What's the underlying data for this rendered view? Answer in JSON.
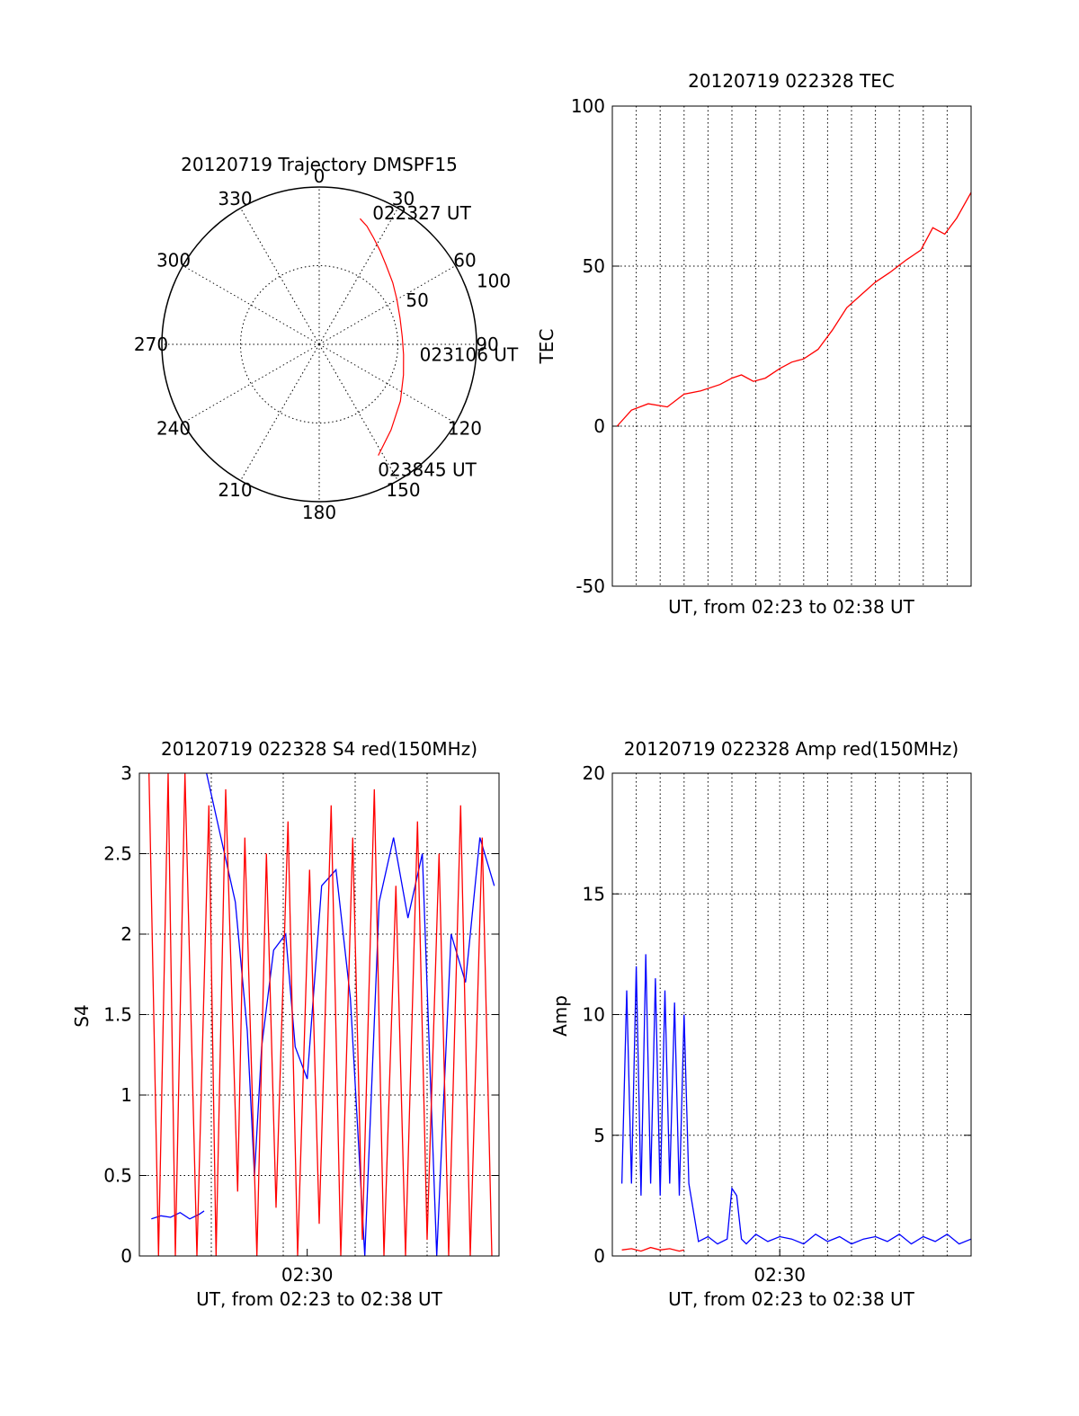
{
  "colors": {
    "red": "#ff0000",
    "blue": "#0000ff",
    "axis": "#000000"
  },
  "chart_data": [
    {
      "id": "polar",
      "type": "polar-trajectory",
      "title": "20120719 Trajectory DMSPF15",
      "azimuth_labels": [
        "0",
        "30",
        "60",
        "90",
        "120",
        "150",
        "180",
        "210",
        "240",
        "270",
        "300",
        "330"
      ],
      "radial_ticks": [
        50,
        100
      ],
      "radial_labels": [
        "50",
        "100"
      ],
      "trajectory": {
        "az": [
          18,
          22,
          27,
          33,
          40,
          50,
          60,
          72,
          85,
          97,
          110,
          125,
          140,
          152
        ],
        "zenith": [
          84,
          81,
          76,
          71,
          66,
          61,
          57,
          54,
          53,
          54,
          57,
          63,
          71,
          80
        ]
      },
      "annotations": [
        {
          "text": "022327 UT",
          "az": 22,
          "zenith": 90
        },
        {
          "text": "023106 UT",
          "az": 96,
          "zenith": 64
        },
        {
          "text": "023845 UT",
          "az": 155,
          "zenith": 88
        }
      ]
    },
    {
      "id": "tec",
      "type": "line",
      "title": "20120719 022328 TEC",
      "xlabel": "UT, from 02:23 to 02:38 UT",
      "ylabel": "TEC",
      "xlim": [
        0,
        15
      ],
      "ylim": [
        -50,
        100
      ],
      "yticks": [
        "100",
        "50",
        "0",
        "-50"
      ],
      "xticks": [],
      "grid": true,
      "series": [
        {
          "color": "red",
          "x": [
            0.2,
            0.8,
            1.5,
            2.3,
            3.0,
            3.7,
            4.5,
            5.0,
            5.4,
            5.9,
            6.4,
            7.0,
            7.5,
            8.0,
            8.6,
            9.2,
            9.8,
            10.4,
            11.0,
            11.6,
            12.3,
            12.9,
            13.4,
            13.9,
            14.4,
            15.0
          ],
          "y": [
            0,
            5,
            7,
            6,
            10,
            11,
            13,
            15,
            16,
            14,
            15,
            18,
            20,
            21,
            24,
            30,
            37,
            41,
            45,
            48,
            52,
            55,
            62,
            60,
            65,
            73
          ]
        }
      ]
    },
    {
      "id": "s4",
      "type": "line",
      "title": "20120719 022328 S4 red(150MHz)",
      "xlabel": "UT, from 02:23 to 02:38 UT",
      "ylabel": "S4",
      "xlim": [
        0,
        15
      ],
      "ylim": [
        0,
        3
      ],
      "yticks": [
        "3",
        "2.5",
        "2",
        "1.5",
        "1",
        "0.5",
        "0"
      ],
      "xticks": [
        {
          "value": 7,
          "label": "02:30"
        }
      ],
      "grid": true,
      "series": [
        {
          "color": "blue",
          "x": [
            0.5,
            0.9,
            1.3,
            1.7,
            2.1,
            2.5,
            2.7
          ],
          "y": [
            0.23,
            0.25,
            0.24,
            0.27,
            0.23,
            0.26,
            0.28
          ]
        },
        {
          "color": "blue",
          "x": [
            2.8,
            3.4,
            4.0,
            4.5,
            4.8,
            5.1,
            5.6,
            6.1,
            6.5,
            7.0,
            7.6,
            8.2,
            8.8,
            9.4,
            10.0,
            10.6,
            11.2,
            11.8,
            12.4,
            13.0,
            13.6,
            14.2,
            14.8
          ],
          "y": [
            3.0,
            2.6,
            2.2,
            1.4,
            0.5,
            1.3,
            1.9,
            2.0,
            1.3,
            1.1,
            2.3,
            2.4,
            1.6,
            0.0,
            2.2,
            2.6,
            2.1,
            2.5,
            0.0,
            2.0,
            1.7,
            2.6,
            2.3
          ]
        },
        {
          "color": "red",
          "x": [
            0.4,
            0.8,
            1.2,
            1.5,
            1.9,
            2.4,
            2.9,
            3.2,
            3.6,
            4.1,
            4.4,
            4.9,
            5.3,
            5.7,
            6.2,
            6.6,
            7.1,
            7.5,
            8.0,
            8.4,
            8.9,
            9.3,
            9.8,
            10.2,
            10.7,
            11.1,
            11.6,
            12.0,
            12.5,
            12.9,
            13.4,
            13.8,
            14.3,
            14.7
          ],
          "y": [
            3.0,
            0.0,
            3.0,
            0.0,
            3.0,
            0.0,
            2.8,
            0.0,
            2.9,
            0.4,
            2.6,
            0.0,
            2.5,
            0.3,
            2.7,
            0.0,
            2.4,
            0.2,
            2.8,
            0.0,
            2.6,
            0.1,
            2.9,
            0.0,
            2.3,
            0.0,
            2.7,
            0.1,
            2.5,
            0.0,
            2.8,
            0.0,
            2.6,
            0.0
          ]
        }
      ]
    },
    {
      "id": "amp",
      "type": "line",
      "title": "20120719 022328 Amp red(150MHz)",
      "xlabel": "UT, from 02:23 to 02:38 UT",
      "ylabel": "Amp",
      "xlim": [
        0,
        15
      ],
      "ylim": [
        0,
        20
      ],
      "yticks": [
        "20",
        "15",
        "10",
        "5",
        "0"
      ],
      "xticks": [
        {
          "value": 7,
          "label": "02:30"
        }
      ],
      "grid": true,
      "series": [
        {
          "color": "blue",
          "x": [
            0.4,
            0.6,
            0.8,
            1.0,
            1.2,
            1.4,
            1.6,
            1.8,
            2.0,
            2.2,
            2.4,
            2.6,
            2.8,
            3.0,
            3.2,
            3.6,
            4.0,
            4.4,
            4.8,
            5.0,
            5.2,
            5.4,
            5.6,
            6.0,
            6.5,
            7.0,
            7.5,
            8.0,
            8.5,
            9.0,
            9.5,
            10.0,
            10.5,
            11.0,
            11.5,
            12.0,
            12.5,
            13.0,
            13.5,
            14.0,
            14.5,
            15.0
          ],
          "y": [
            3,
            11,
            3,
            12,
            2.5,
            12.5,
            3,
            11.5,
            2.5,
            11,
            3,
            10.5,
            2.5,
            10,
            3,
            0.6,
            0.8,
            0.5,
            0.7,
            2.8,
            2.5,
            0.7,
            0.5,
            0.9,
            0.6,
            0.8,
            0.7,
            0.5,
            0.9,
            0.6,
            0.8,
            0.5,
            0.7,
            0.8,
            0.6,
            0.9,
            0.5,
            0.8,
            0.6,
            0.9,
            0.5,
            0.7
          ]
        },
        {
          "color": "red",
          "x": [
            0.4,
            0.8,
            1.2,
            1.6,
            2.0,
            2.4,
            2.8,
            3.0
          ],
          "y": [
            0.25,
            0.3,
            0.2,
            0.35,
            0.25,
            0.3,
            0.2,
            0.25
          ]
        }
      ]
    }
  ]
}
